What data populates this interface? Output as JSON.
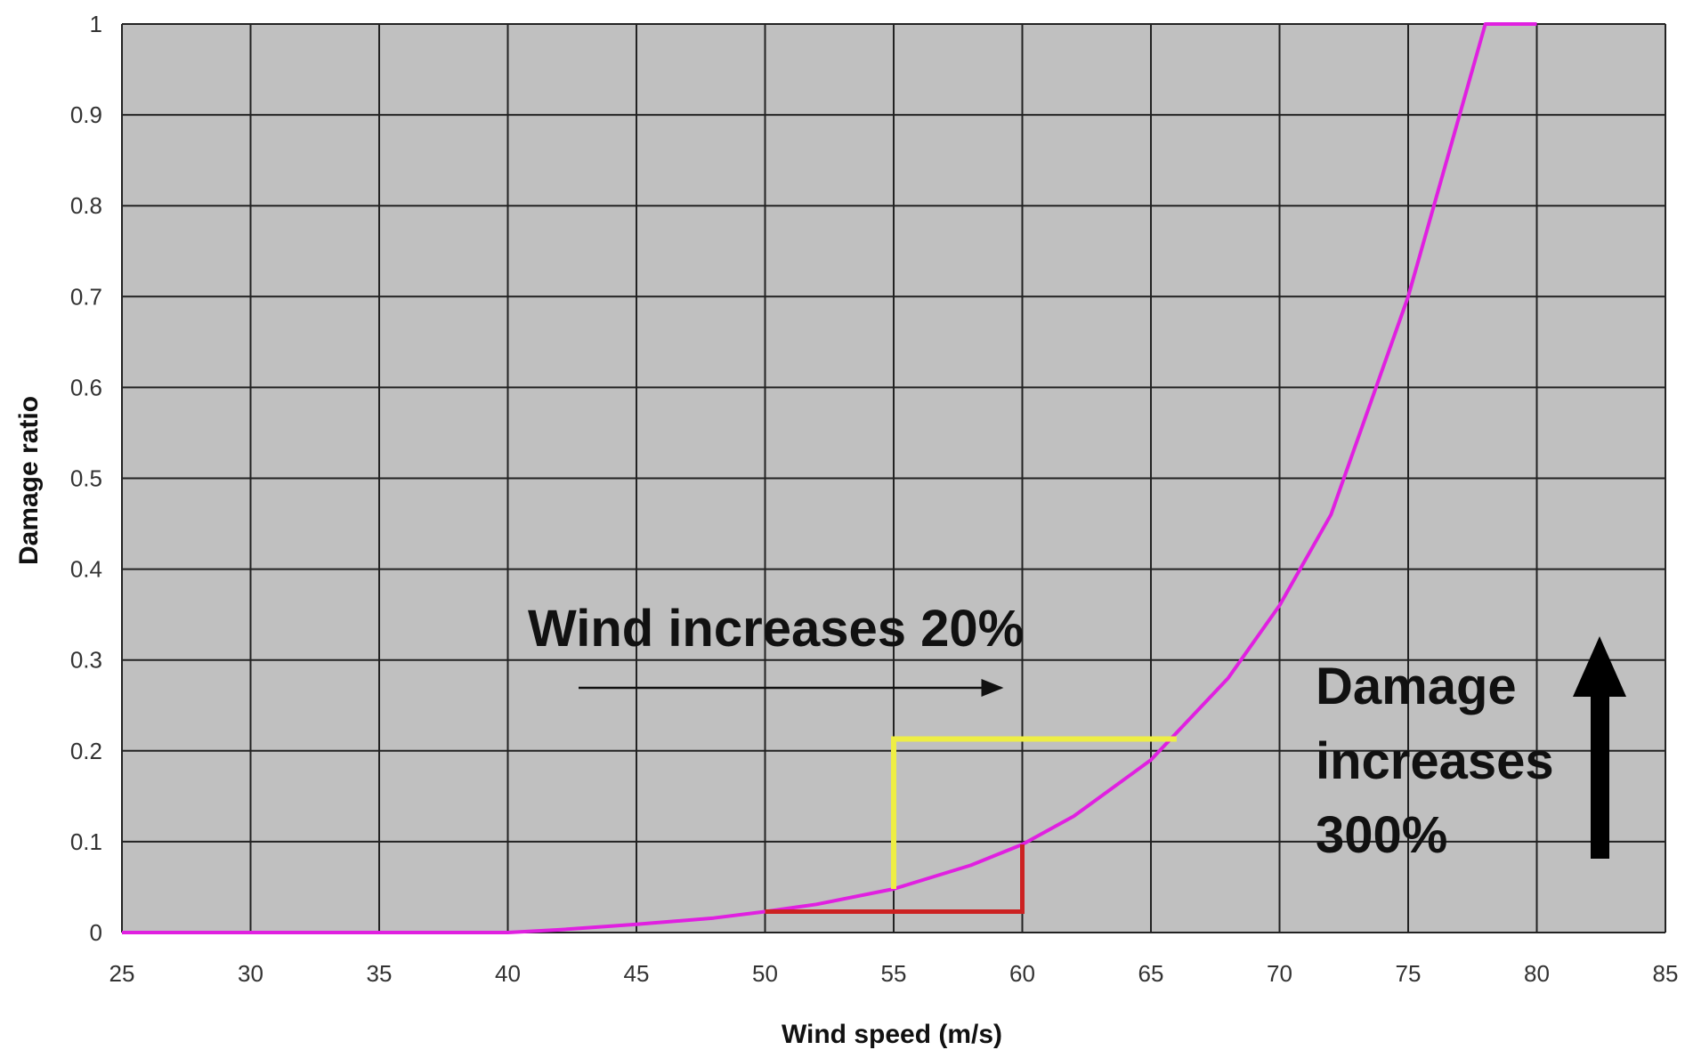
{
  "chart_data": {
    "type": "line",
    "title": "",
    "xlabel": "Wind speed (m/s)",
    "ylabel": "Damage ratio",
    "xlim": [
      25,
      85
    ],
    "ylim": [
      0,
      1
    ],
    "x_ticks": [
      25,
      30,
      35,
      40,
      45,
      50,
      55,
      60,
      65,
      70,
      75,
      80,
      85
    ],
    "y_ticks": [
      0,
      0.1,
      0.2,
      0.3,
      0.4,
      0.5,
      0.6,
      0.7,
      0.8,
      0.9,
      1
    ],
    "grid": true,
    "legend": "none",
    "background_color": "#c0c0c0",
    "series": [
      {
        "color": "#e020e0",
        "x": [
          25,
          30,
          35,
          40,
          42,
          45,
          48,
          50,
          52,
          55,
          58,
          60,
          62,
          65,
          68,
          70,
          72,
          75,
          77,
          78,
          80
        ],
        "y": [
          0,
          0,
          0,
          0,
          0.003,
          0.009,
          0.016,
          0.023,
          0.031,
          0.048,
          0.074,
          0.097,
          0.128,
          0.19,
          0.28,
          0.36,
          0.46,
          0.7,
          0.9,
          1,
          1
        ]
      }
    ],
    "annotations": {
      "wind_text": "Wind increases 20%",
      "damage_text_lines": [
        "Damage",
        "increases",
        "300%"
      ],
      "red_bracket": {
        "color": "#cc2222",
        "x1": 50,
        "x2": 60,
        "y1": 0.023,
        "y2": 0.097
      },
      "yellow_bracket": {
        "color": "#eeee44",
        "x1": 55,
        "x2": 66,
        "y1": 0.048,
        "y2": 0.213
      }
    }
  }
}
